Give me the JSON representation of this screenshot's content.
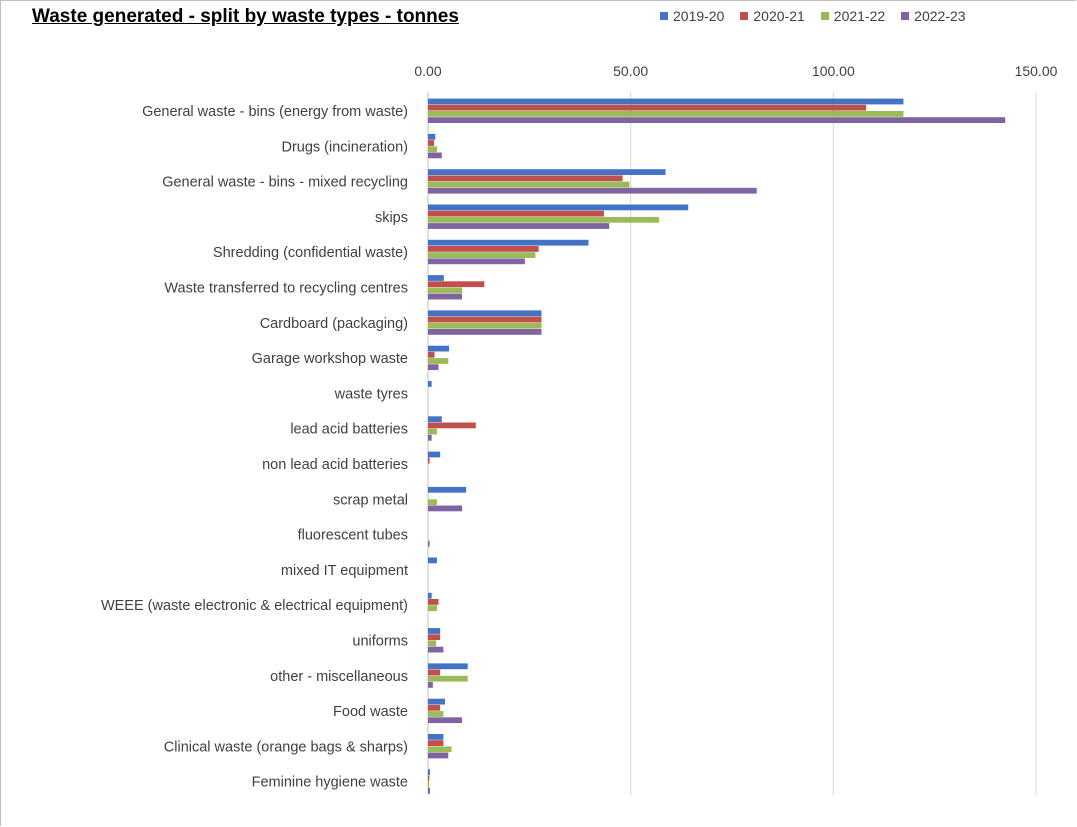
{
  "chart_data": {
    "type": "bar",
    "orientation": "horizontal",
    "title": "Waste generated - split by waste types - tonnes",
    "xlabel": "",
    "ylabel": "",
    "xlim": [
      0,
      150
    ],
    "x_ticks": [
      "0.00",
      "50.00",
      "100.00",
      "150.00"
    ],
    "grid": true,
    "legend_position": "top-right",
    "categories": [
      "General waste - bins (energy from waste)",
      "Drugs (incineration)",
      "General waste - bins - mixed recycling",
      "skips",
      "Shredding (confidential waste)",
      "Waste transferred to recycling centres",
      "Cardboard (packaging)",
      "Garage workshop waste",
      "waste tyres",
      "lead acid batteries",
      "non lead acid batteries",
      "scrap metal",
      "fluorescent tubes",
      "mixed IT equipment",
      "WEEE (waste electronic & electrical equipment)",
      "uniforms",
      "other - miscellaneous",
      "Food waste",
      "Clinical waste (orange bags & sharps)",
      "Feminine hygiene waste"
    ],
    "series": [
      {
        "name": "2019-20",
        "color": "#4472C4",
        "values": [
          117.3,
          1.8,
          58.6,
          64.2,
          39.6,
          3.9,
          28.0,
          5.2,
          0.9,
          3.4,
          3.0,
          9.4,
          0,
          2.2,
          0.9,
          3.0,
          9.8,
          4.2,
          3.8,
          0.5
        ]
      },
      {
        "name": "2020-21",
        "color": "#C0504D",
        "values": [
          108.1,
          1.5,
          48.0,
          43.4,
          27.3,
          13.9,
          28.0,
          1.6,
          0,
          11.8,
          0.4,
          0,
          0,
          0,
          2.6,
          3.0,
          3.0,
          3.0,
          3.8,
          0.3
        ]
      },
      {
        "name": "2021-22",
        "color": "#9BBB59",
        "values": [
          117.3,
          2.2,
          49.7,
          57.0,
          26.5,
          8.4,
          28.0,
          5.0,
          0,
          2.2,
          0,
          2.2,
          0,
          0,
          2.2,
          2.0,
          9.8,
          3.8,
          5.8,
          0.3
        ]
      },
      {
        "name": "2022-23",
        "color": "#8064A2",
        "values": [
          142.4,
          3.4,
          81.1,
          44.7,
          23.9,
          8.4,
          28.0,
          2.6,
          0,
          0.9,
          0,
          8.4,
          0.4,
          0,
          0,
          3.8,
          1.2,
          8.4,
          5.0,
          0.5
        ]
      }
    ]
  }
}
